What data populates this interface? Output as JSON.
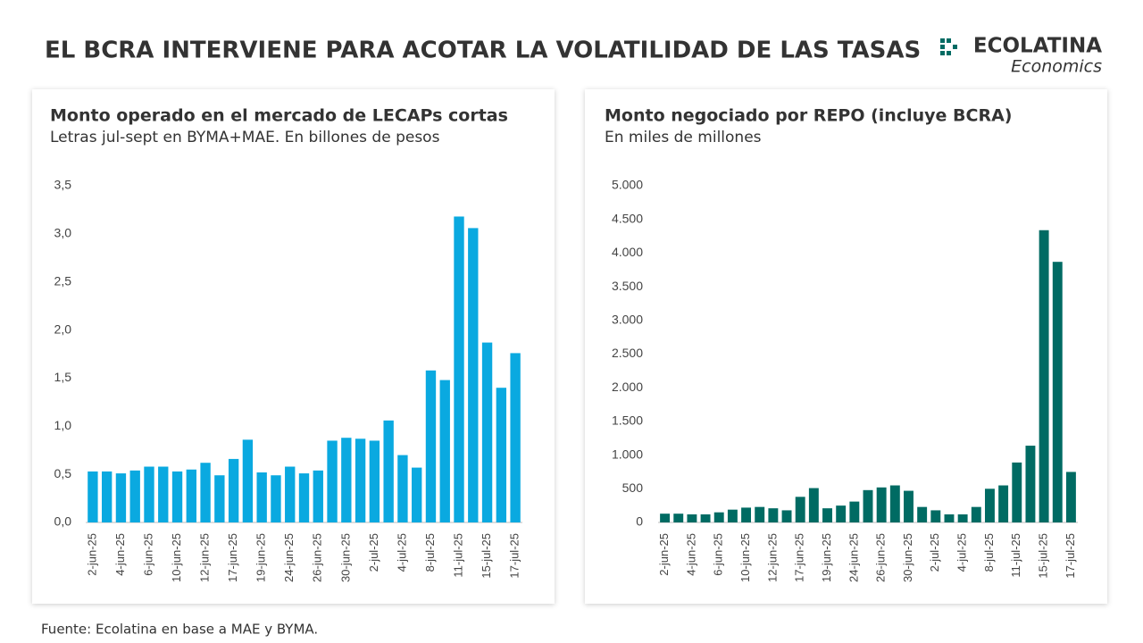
{
  "header": {
    "title": "EL BCRA INTERVIENE PARA ACOTAR LA VOLATILIDAD DE LAS TASAS"
  },
  "logo": {
    "name": "ECOLATINA",
    "tagline": "Economics"
  },
  "footer": "Fuente: Ecolatina en base a MAE y BYMA.",
  "chart_data": [
    {
      "type": "bar",
      "title": "Monto operado en el mercado de LECAPs cortas",
      "subtitle": "Letras jul-sept en BYMA+MAE. En billones de pesos",
      "color": "#0aa9e0",
      "categories": [
        "2-jun-25",
        null,
        "4-jun-25",
        null,
        "6-jun-25",
        null,
        "10-jun-25",
        null,
        "12-jun-25",
        null,
        "17-jun-25",
        null,
        "19-jun-25",
        null,
        "24-jun-25",
        null,
        "26-jun-25",
        null,
        "30-jun-25",
        null,
        "2-jul-25",
        null,
        "4-jul-25",
        null,
        "8-jul-25",
        null,
        "11-jul-25",
        null,
        "15-jul-25",
        null,
        "17-jul-25"
      ],
      "values": [
        0.53,
        0.53,
        0.51,
        0.54,
        0.58,
        0.58,
        0.53,
        0.55,
        0.62,
        0.49,
        0.66,
        0.86,
        0.52,
        0.49,
        0.58,
        0.51,
        0.54,
        0.85,
        0.88,
        0.87,
        0.85,
        1.06,
        0.7,
        0.57,
        1.58,
        1.48,
        3.18,
        3.06,
        1.87,
        1.4,
        1.76
      ],
      "ylim": [
        0,
        3.5
      ],
      "yticks": [
        {
          "value": 0,
          "label": "0,0"
        },
        {
          "value": 0.5,
          "label": "0,5"
        },
        {
          "value": 1,
          "label": "1,0"
        },
        {
          "value": 1.5,
          "label": "1,5"
        },
        {
          "value": 2,
          "label": "2,0"
        },
        {
          "value": 2.5,
          "label": "2,5"
        },
        {
          "value": 3,
          "label": "3,0"
        },
        {
          "value": 3.5,
          "label": "3,5"
        }
      ]
    },
    {
      "type": "bar",
      "title": "Monto negociado por REPO (incluye BCRA)",
      "subtitle": "En miles de millones",
      "color": "#006b63",
      "categories": [
        "2-jun-25",
        null,
        "4-jun-25",
        null,
        "6-jun-25",
        null,
        "10-jun-25",
        null,
        "12-jun-25",
        null,
        "17-jun-25",
        null,
        "19-jun-25",
        null,
        "24-jun-25",
        null,
        "26-jun-25",
        null,
        "30-jun-25",
        null,
        "2-jul-25",
        null,
        "4-jul-25",
        null,
        "8-jul-25",
        null,
        "11-jul-25",
        null,
        "15-jul-25",
        null,
        "17-jul-25"
      ],
      "values": [
        130,
        130,
        120,
        120,
        150,
        190,
        220,
        230,
        210,
        180,
        380,
        510,
        210,
        250,
        310,
        480,
        520,
        550,
        470,
        230,
        180,
        120,
        120,
        230,
        500,
        550,
        890,
        1140,
        4340,
        3870,
        750
      ],
      "ylim": [
        0,
        5000
      ],
      "yticks": [
        0,
        500,
        {
          "value": 1000,
          "label": "1.000"
        },
        {
          "value": 1500,
          "label": "1.500"
        },
        {
          "value": 2000,
          "label": "2.000"
        },
        {
          "value": 2500,
          "label": "2.500"
        },
        {
          "value": 3000,
          "label": "3.000"
        },
        {
          "value": 3500,
          "label": "3.500"
        },
        {
          "value": 4000,
          "label": "4.000"
        },
        {
          "value": 4500,
          "label": "4.500"
        },
        {
          "value": 5000,
          "label": "5.000"
        }
      ]
    }
  ]
}
